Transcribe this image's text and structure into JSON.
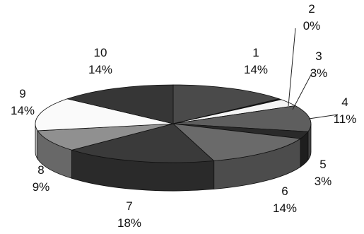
{
  "chart_data": {
    "type": "pie",
    "style": "3d",
    "title": "",
    "start_angle_deg": -90,
    "direction": "clockwise",
    "slices": [
      {
        "label": "1",
        "value": 14,
        "pct_label": "14%",
        "color": "#4a4a4a"
      },
      {
        "label": "2",
        "value": 0.4,
        "pct_label": "0%",
        "color": "#1e1e1e"
      },
      {
        "label": "3",
        "value": 3,
        "pct_label": "3%",
        "color": "#f4f4f4"
      },
      {
        "label": "4",
        "value": 11,
        "pct_label": "11%",
        "color": "#5e5e5e"
      },
      {
        "label": "5",
        "value": 3,
        "pct_label": "3%",
        "color": "#2a2a2a"
      },
      {
        "label": "6",
        "value": 14,
        "pct_label": "14%",
        "color": "#6a6a6a"
      },
      {
        "label": "7",
        "value": 18,
        "pct_label": "18%",
        "color": "#3a3a3a"
      },
      {
        "label": "8",
        "value": 9,
        "pct_label": "9%",
        "color": "#909090"
      },
      {
        "label": "9",
        "value": 14,
        "pct_label": "14%",
        "color": "#fafafa"
      },
      {
        "label": "10",
        "value": 14,
        "pct_label": "14%",
        "color": "#363636"
      }
    ]
  }
}
